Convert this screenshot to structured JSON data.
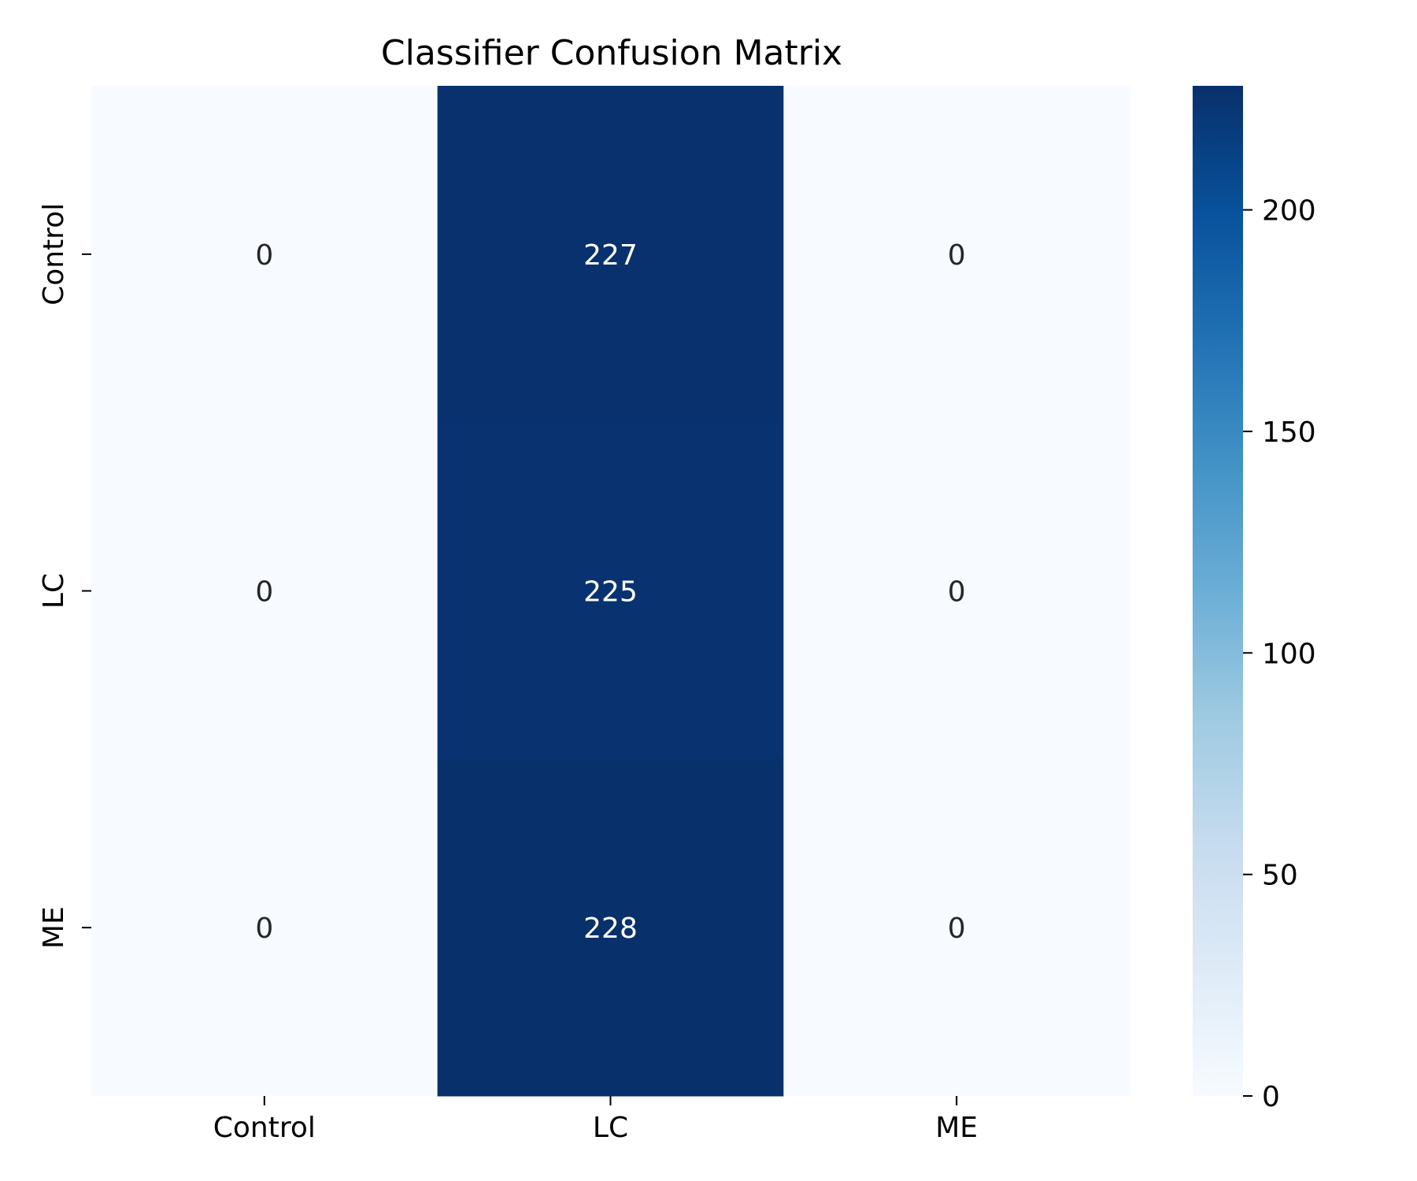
{
  "chart_data": {
    "type": "heatmap",
    "title": "Classifier Confusion Matrix",
    "xlabel": "",
    "ylabel": "",
    "row_labels": [
      "Control",
      "LC",
      "ME"
    ],
    "col_labels": [
      "Control",
      "LC",
      "ME"
    ],
    "values": [
      [
        0,
        227,
        0
      ],
      [
        0,
        225,
        0
      ],
      [
        0,
        228,
        0
      ]
    ],
    "colormap": "Blues",
    "colorbar": {
      "range": [
        0,
        228
      ],
      "ticks": [
        0,
        50,
        100,
        150,
        200
      ],
      "colors": [
        "#f7fbff",
        "#deebf7",
        "#c6dbef",
        "#9ecae1",
        "#6baed6",
        "#4292c6",
        "#2171b5",
        "#08519c",
        "#08306b"
      ]
    },
    "annotation_dark_text_color": "#262626",
    "annotation_light_text_color": "#ffffff"
  }
}
